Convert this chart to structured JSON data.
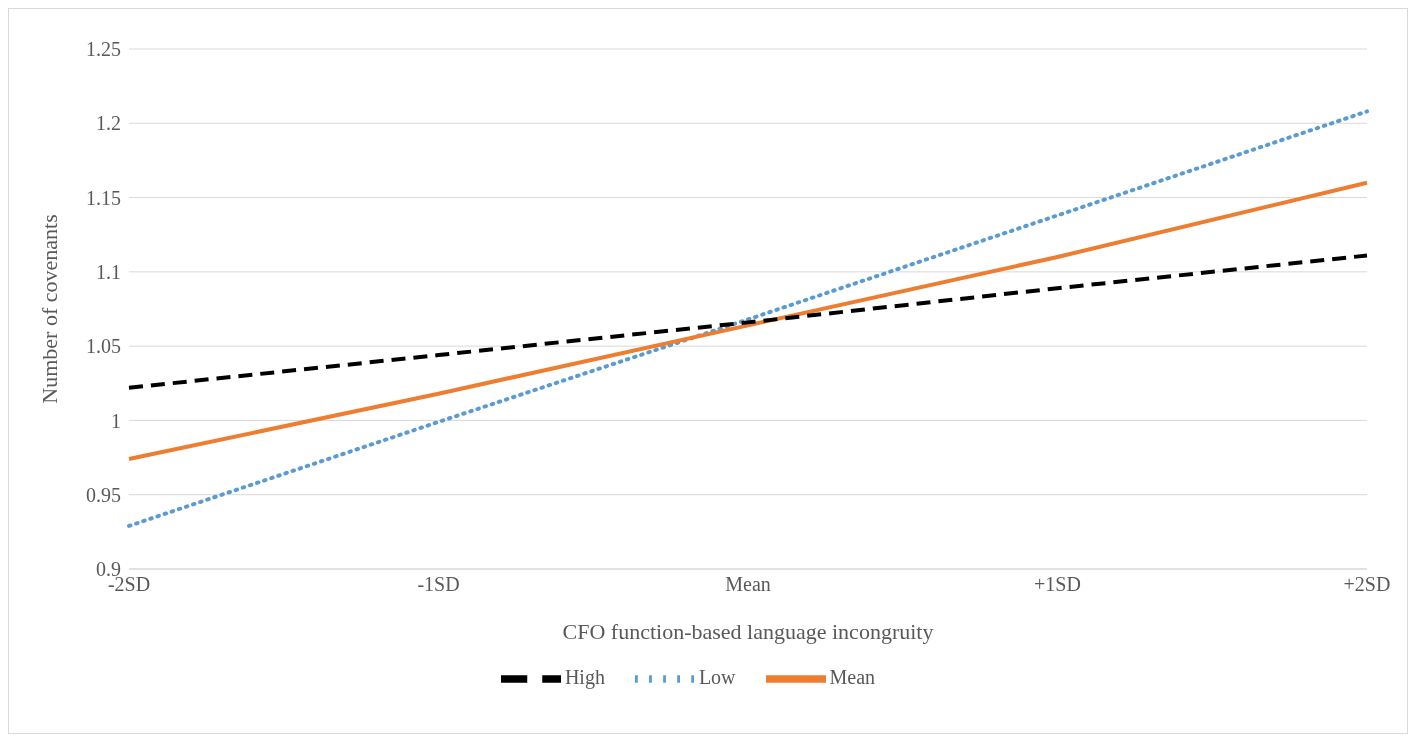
{
  "chart_data": {
    "type": "line",
    "xlabel": "CFO function-based language incongruity",
    "ylabel": "Number of covenants",
    "categories": [
      "-2SD",
      "-1SD",
      "Mean",
      "+1SD",
      "+2SD"
    ],
    "series": [
      {
        "name": "Low",
        "color": "#5b9bd5",
        "line_style": "dotted",
        "values": [
          0.929,
          0.999,
          1.068,
          1.138,
          1.208
        ]
      },
      {
        "name": "Mean",
        "color": "#ed7d31",
        "line_style": "solid",
        "values": [
          0.974,
          1.018,
          1.064,
          1.11,
          1.16
        ]
      },
      {
        "name": "High",
        "color": "#000000",
        "line_style": "dashed",
        "values": [
          1.022,
          1.044,
          1.066,
          1.089,
          1.111
        ]
      }
    ],
    "ylim": [
      0.9,
      1.25
    ],
    "yticks": [
      0.9,
      0.95,
      1,
      1.05,
      1.1,
      1.15,
      1.2,
      1.25
    ],
    "grid": "y",
    "legend": "bottom",
    "marker": "none"
  }
}
